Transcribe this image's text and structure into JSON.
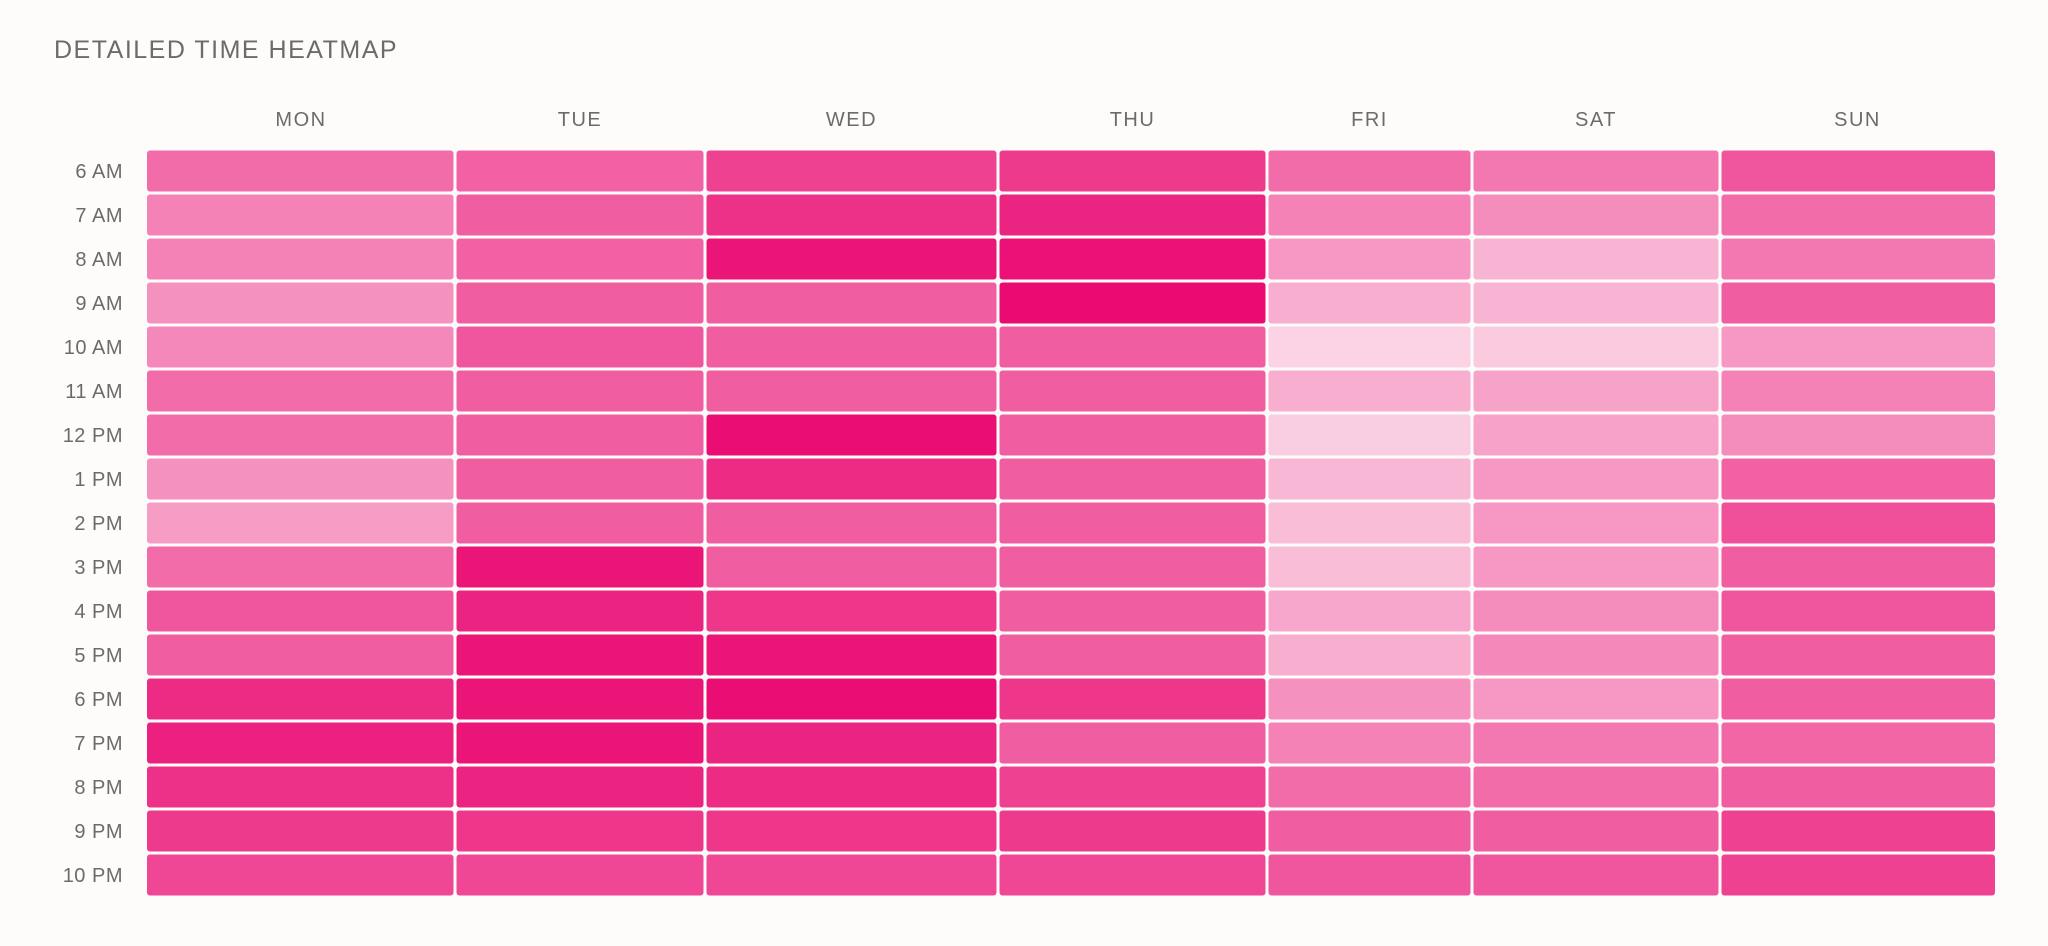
{
  "chart_data": {
    "type": "heatmap",
    "title": "DETAILED TIME HEATMAP",
    "x_categories": [
      "MON",
      "TUE",
      "WED",
      "THU",
      "FRI",
      "SAT",
      "SUN"
    ],
    "y_categories": [
      "6 AM",
      "7 AM",
      "8 AM",
      "9 AM",
      "10 AM",
      "11 AM",
      "12 PM",
      "1 PM",
      "2 PM",
      "3 PM",
      "4 PM",
      "5 PM",
      "6 PM",
      "7 PM",
      "8 PM",
      "9 PM",
      "10 PM"
    ],
    "value_range": [
      0,
      1
    ],
    "values": [
      [
        0.55,
        0.6,
        0.75,
        0.78,
        0.55,
        0.5,
        0.65
      ],
      [
        0.45,
        0.62,
        0.82,
        0.88,
        0.45,
        0.4,
        0.55
      ],
      [
        0.45,
        0.6,
        0.95,
        0.97,
        0.35,
        0.22,
        0.5
      ],
      [
        0.38,
        0.62,
        0.62,
        1.0,
        0.25,
        0.22,
        0.62
      ],
      [
        0.42,
        0.65,
        0.62,
        0.62,
        0.08,
        0.12,
        0.35
      ],
      [
        0.55,
        0.62,
        0.62,
        0.62,
        0.25,
        0.3,
        0.45
      ],
      [
        0.55,
        0.62,
        0.98,
        0.62,
        0.1,
        0.3,
        0.4
      ],
      [
        0.38,
        0.62,
        0.85,
        0.62,
        0.2,
        0.35,
        0.6
      ],
      [
        0.33,
        0.62,
        0.62,
        0.62,
        0.18,
        0.35,
        0.68
      ],
      [
        0.55,
        0.95,
        0.62,
        0.62,
        0.18,
        0.35,
        0.62
      ],
      [
        0.65,
        0.88,
        0.8,
        0.62,
        0.28,
        0.4,
        0.65
      ],
      [
        0.62,
        0.95,
        0.95,
        0.62,
        0.25,
        0.42,
        0.62
      ],
      [
        0.85,
        0.95,
        0.98,
        0.8,
        0.38,
        0.35,
        0.62
      ],
      [
        0.9,
        0.95,
        0.88,
        0.62,
        0.45,
        0.5,
        0.58
      ],
      [
        0.82,
        0.88,
        0.85,
        0.75,
        0.55,
        0.55,
        0.62
      ],
      [
        0.78,
        0.8,
        0.8,
        0.78,
        0.62,
        0.62,
        0.75
      ],
      [
        0.72,
        0.72,
        0.72,
        0.72,
        0.65,
        0.65,
        0.75
      ]
    ],
    "color_scale": [
      "#fce4ee",
      "#ea0a72"
    ],
    "legend": "none"
  }
}
